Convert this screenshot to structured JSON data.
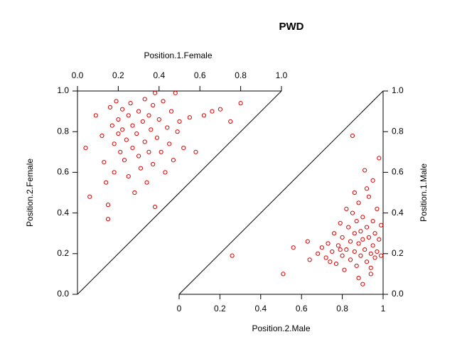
{
  "chart_data": [
    {
      "type": "scatter",
      "title": "PWD",
      "x_label": "Position.1.Female",
      "y_label": "Position.2.Female",
      "x_axis_side": "top",
      "y_axis_side": "left",
      "color": "#e00000",
      "xlim": [
        0,
        1
      ],
      "ylim": [
        0,
        1
      ],
      "xticks": [
        {
          "value": 0,
          "label": "0.0"
        },
        0.2,
        0.4,
        0.6,
        0.8,
        {
          "value": 1,
          "label": "1.0"
        }
      ],
      "yticks": [
        {
          "value": 0,
          "label": "0.0"
        },
        0.2,
        0.4,
        0.6,
        0.8,
        {
          "value": 1,
          "label": "1.0"
        }
      ],
      "x": [
        0.04,
        0.06,
        0.09,
        0.12,
        0.13,
        0.14,
        0.15,
        0.15,
        0.16,
        0.17,
        0.18,
        0.18,
        0.19,
        0.2,
        0.2,
        0.21,
        0.22,
        0.22,
        0.23,
        0.24,
        0.25,
        0.25,
        0.26,
        0.27,
        0.27,
        0.28,
        0.29,
        0.3,
        0.3,
        0.31,
        0.32,
        0.33,
        0.33,
        0.34,
        0.35,
        0.35,
        0.36,
        0.37,
        0.37,
        0.38,
        0.39,
        0.4,
        0.41,
        0.42,
        0.43,
        0.44,
        0.45,
        0.46,
        0.47,
        0.49,
        0.5,
        0.52,
        0.55,
        0.58,
        0.62,
        0.66,
        0.7,
        0.75,
        0.8,
        0.38,
        0.48
      ],
      "y": [
        0.72,
        0.48,
        0.88,
        0.78,
        0.65,
        0.55,
        0.44,
        0.37,
        0.92,
        0.83,
        0.74,
        0.6,
        0.95,
        0.86,
        0.79,
        0.7,
        0.91,
        0.81,
        0.66,
        0.76,
        0.88,
        0.58,
        0.94,
        0.83,
        0.72,
        0.5,
        0.79,
        0.9,
        0.68,
        0.62,
        0.85,
        0.96,
        0.75,
        0.55,
        0.88,
        0.7,
        0.81,
        0.93,
        0.64,
        0.43,
        0.77,
        0.86,
        0.7,
        0.95,
        0.6,
        0.82,
        0.74,
        0.9,
        0.66,
        0.8,
        0.85,
        0.72,
        0.87,
        0.7,
        0.88,
        0.9,
        0.91,
        0.85,
        0.94,
        0.99,
        0.99
      ]
    },
    {
      "type": "scatter",
      "x_label": "Position.2.Male",
      "y_label": "Position.1.Male",
      "x_axis_side": "bottom",
      "y_axis_side": "right",
      "color": "#e00000",
      "xlim": [
        0,
        1
      ],
      "ylim": [
        0,
        1
      ],
      "xticks": [
        0,
        0.2,
        0.4,
        0.6,
        0.8,
        1
      ],
      "yticks": [
        {
          "value": 0,
          "label": "0.0"
        },
        0.2,
        0.4,
        0.6,
        0.8,
        {
          "value": 1,
          "label": "1.0"
        }
      ],
      "x": [
        0.26,
        0.51,
        0.56,
        0.63,
        0.64,
        0.68,
        0.7,
        0.72,
        0.73,
        0.75,
        0.76,
        0.77,
        0.78,
        0.79,
        0.8,
        0.8,
        0.81,
        0.82,
        0.83,
        0.84,
        0.84,
        0.85,
        0.85,
        0.86,
        0.86,
        0.87,
        0.87,
        0.88,
        0.88,
        0.89,
        0.89,
        0.9,
        0.9,
        0.9,
        0.91,
        0.91,
        0.92,
        0.92,
        0.93,
        0.93,
        0.94,
        0.94,
        0.95,
        0.95,
        0.95,
        0.96,
        0.96,
        0.97,
        0.97,
        0.98,
        0.98,
        0.99,
        0.99,
        0.92,
        0.86,
        0.82,
        0.88,
        0.94,
        0.79,
        0.74
      ],
      "y": [
        0.19,
        0.1,
        0.23,
        0.26,
        0.17,
        0.2,
        0.23,
        0.18,
        0.25,
        0.21,
        0.3,
        0.15,
        0.24,
        0.35,
        0.19,
        0.28,
        0.12,
        0.22,
        0.33,
        0.26,
        0.17,
        0.78,
        0.4,
        0.3,
        0.21,
        0.14,
        0.36,
        0.25,
        0.45,
        0.19,
        0.31,
        0.05,
        0.27,
        0.38,
        0.22,
        0.61,
        0.16,
        0.33,
        0.28,
        0.48,
        0.2,
        0.1,
        0.36,
        0.24,
        0.56,
        0.18,
        0.3,
        0.42,
        0.21,
        0.27,
        0.67,
        0.34,
        0.19,
        0.52,
        0.5,
        0.42,
        0.08,
        0.13,
        0.22,
        0.16
      ]
    }
  ]
}
